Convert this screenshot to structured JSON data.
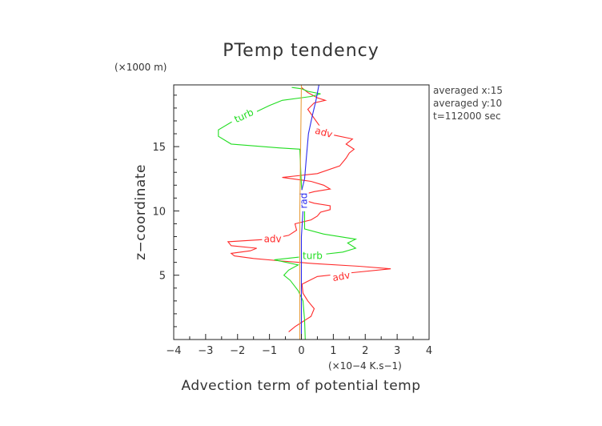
{
  "chart_data": {
    "type": "line",
    "title": "PTemp tendency",
    "xlabel": "Advection term of potential temp",
    "xunit": "(×10−4 K.s−1)",
    "ylabel": "z−coordinate",
    "yunit": "(×1000 m)",
    "xlim": [
      -4,
      4
    ],
    "ylim": [
      0,
      19.8
    ],
    "xticks": [
      -4,
      -3,
      -2,
      -1,
      0,
      1,
      2,
      3,
      4
    ],
    "xtick_labels": [
      "−4",
      "−3",
      "−2",
      "−1",
      "0",
      "1",
      "2",
      "3",
      "4"
    ],
    "yticks": [
      5,
      10,
      15
    ],
    "ytick_labels": [
      "5",
      "10",
      "15"
    ],
    "info": [
      "averaged  x:15",
      "averaged  y:10",
      "t=112000 sec"
    ],
    "series": [
      {
        "name": "adv",
        "color": "#ff2a2a",
        "points": [
          [
            -0.4,
            0.6
          ],
          [
            -0.2,
            1.0
          ],
          [
            0.05,
            1.4
          ],
          [
            0.3,
            1.8
          ],
          [
            0.4,
            2.4
          ],
          [
            0.2,
            3.0
          ],
          [
            0.05,
            3.6
          ],
          [
            0.02,
            4.3
          ],
          [
            0.5,
            4.9
          ],
          [
            1.6,
            5.2
          ],
          [
            2.8,
            5.5
          ],
          [
            1.8,
            5.7
          ],
          [
            0.4,
            5.9
          ],
          [
            -0.6,
            6.1
          ],
          [
            -1.5,
            6.3
          ],
          [
            -2.1,
            6.5
          ],
          [
            -2.2,
            6.7
          ],
          [
            -1.6,
            6.9
          ],
          [
            -1.4,
            7.1
          ],
          [
            -2.2,
            7.3
          ],
          [
            -2.3,
            7.6
          ],
          [
            -1.0,
            7.8
          ],
          [
            -0.4,
            8.1
          ],
          [
            -0.15,
            8.5
          ],
          [
            -0.2,
            9.0
          ],
          [
            0.3,
            9.3
          ],
          [
            0.5,
            9.6
          ],
          [
            0.6,
            9.9
          ],
          [
            0.9,
            10.1
          ],
          [
            0.9,
            10.4
          ],
          [
            0.4,
            10.6
          ],
          [
            0.0,
            10.9
          ],
          [
            0.1,
            11.3
          ],
          [
            0.4,
            11.5
          ],
          [
            0.9,
            11.7
          ],
          [
            0.7,
            12.0
          ],
          [
            0.3,
            12.3
          ],
          [
            -0.6,
            12.6
          ],
          [
            0.5,
            12.9
          ],
          [
            1.2,
            13.5
          ],
          [
            1.4,
            14.1
          ],
          [
            1.5,
            14.5
          ],
          [
            1.65,
            14.8
          ],
          [
            1.4,
            15.2
          ],
          [
            1.6,
            15.6
          ],
          [
            1.0,
            15.9
          ],
          [
            0.6,
            16.5
          ],
          [
            0.4,
            17.2
          ],
          [
            0.2,
            17.9
          ],
          [
            0.4,
            18.4
          ],
          [
            0.75,
            18.6
          ],
          [
            0.5,
            18.8
          ],
          [
            0.2,
            19.2
          ],
          [
            0.0,
            19.6
          ]
        ],
        "labels": [
          {
            "text": "adv",
            "x": 0.7,
            "y": 16.1,
            "angle": 15
          },
          {
            "text": "adv",
            "x": -0.9,
            "y": 7.8,
            "angle": 0
          },
          {
            "text": "adv",
            "x": 1.25,
            "y": 4.9,
            "angle": -10
          }
        ]
      },
      {
        "name": "turb",
        "color": "#22dd22",
        "points": [
          [
            0.12,
            0.0
          ],
          [
            0.1,
            1.5
          ],
          [
            0.05,
            3.0
          ],
          [
            -0.1,
            3.8
          ],
          [
            -0.35,
            4.6
          ],
          [
            -0.55,
            5.0
          ],
          [
            -0.4,
            5.4
          ],
          [
            -0.1,
            5.8
          ],
          [
            -0.85,
            6.2
          ],
          [
            -0.1,
            6.4
          ],
          [
            0.6,
            6.6
          ],
          [
            1.3,
            6.8
          ],
          [
            1.7,
            7.1
          ],
          [
            1.45,
            7.5
          ],
          [
            1.7,
            7.8
          ],
          [
            0.7,
            8.2
          ],
          [
            0.1,
            8.6
          ],
          [
            0.1,
            10.0
          ],
          [
            0.0,
            12.0
          ],
          [
            -0.05,
            14.8
          ],
          [
            -0.7,
            14.9
          ],
          [
            -2.2,
            15.2
          ],
          [
            -2.6,
            15.8
          ],
          [
            -2.6,
            16.3
          ],
          [
            -2.2,
            16.9
          ],
          [
            -1.5,
            17.6
          ],
          [
            -1.0,
            18.2
          ],
          [
            -0.6,
            18.6
          ],
          [
            0.3,
            18.9
          ],
          [
            0.6,
            19.1
          ],
          [
            0.2,
            19.3
          ],
          [
            0.0,
            19.5
          ],
          [
            -0.3,
            19.6
          ]
        ],
        "labels": [
          {
            "text": "turb",
            "x": -1.8,
            "y": 17.4,
            "angle": -25
          },
          {
            "text": "turb",
            "x": 0.35,
            "y": 6.5,
            "angle": 0
          }
        ]
      },
      {
        "name": "rad",
        "color": "#2a2aee",
        "points": [
          [
            0.0,
            0.0
          ],
          [
            0.0,
            8.0
          ],
          [
            0.05,
            10.0
          ],
          [
            0.0,
            11.5
          ],
          [
            0.1,
            12.5
          ],
          [
            0.15,
            14.0
          ],
          [
            0.22,
            16.0
          ],
          [
            0.35,
            17.5
          ],
          [
            0.45,
            18.5
          ],
          [
            0.55,
            19.8
          ]
        ],
        "labels": [
          {
            "text": "rad",
            "x": 0.08,
            "y": 10.8,
            "angle": -90
          }
        ]
      },
      {
        "name": "",
        "color": "#e8a040",
        "points": [
          [
            -0.05,
            0.0
          ],
          [
            -0.05,
            10.0
          ],
          [
            0.0,
            19.8
          ]
        ],
        "labels": []
      }
    ]
  }
}
